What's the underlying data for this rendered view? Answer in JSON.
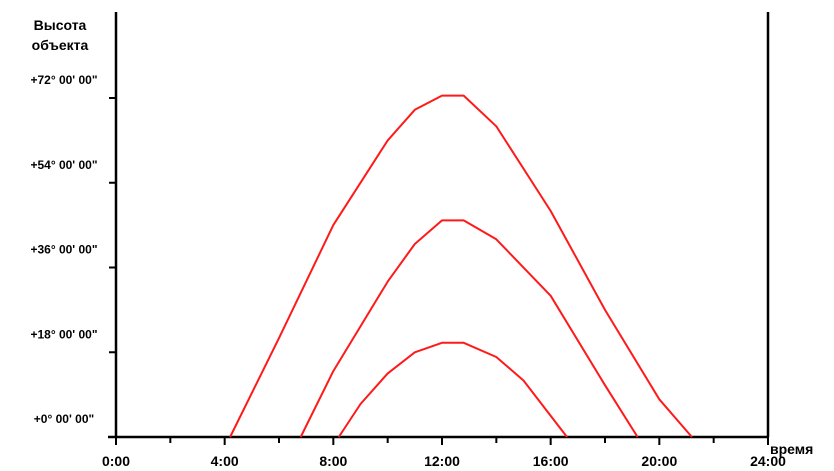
{
  "chart_data": {
    "type": "line",
    "title": "",
    "ylabel_lines": [
      "Высота",
      "объекта"
    ],
    "xlabel": "время",
    "x_ticks": [
      "0:00",
      "4:00",
      "8:00",
      "12:00",
      "16:00",
      "20:00",
      "24:00"
    ],
    "y_ticks": [
      "+0° 00' 00\"",
      "+18° 00' 00\"",
      "+36° 00' 00\"",
      "+54° 00' 00\"",
      "+72° 00' 00\""
    ],
    "xlim": [
      0,
      24
    ],
    "ylim": [
      0,
      72
    ],
    "grid": false,
    "line_color": "#ff1a1a",
    "series": [
      {
        "x": [
          4.2,
          6.0,
          8.0,
          10.0,
          11.0,
          12.0,
          12.8,
          14.0,
          16.0,
          18.0,
          20.0,
          21.2
        ],
        "y": [
          0,
          21,
          45,
          63,
          69.5,
          72.5,
          72.5,
          66,
          48,
          27,
          8,
          0
        ]
      },
      {
        "x": [
          6.8,
          8.0,
          10.0,
          11.0,
          12.0,
          12.8,
          14.0,
          16.0,
          18.0,
          19.2
        ],
        "y": [
          0,
          14,
          33,
          41,
          46,
          46,
          42,
          30,
          11,
          0
        ]
      },
      {
        "x": [
          8.2,
          9.0,
          10.0,
          11.0,
          12.0,
          12.8,
          14.0,
          15.0,
          16.6
        ],
        "y": [
          0,
          7,
          13.5,
          18,
          20,
          20,
          17,
          12,
          0
        ]
      }
    ]
  }
}
